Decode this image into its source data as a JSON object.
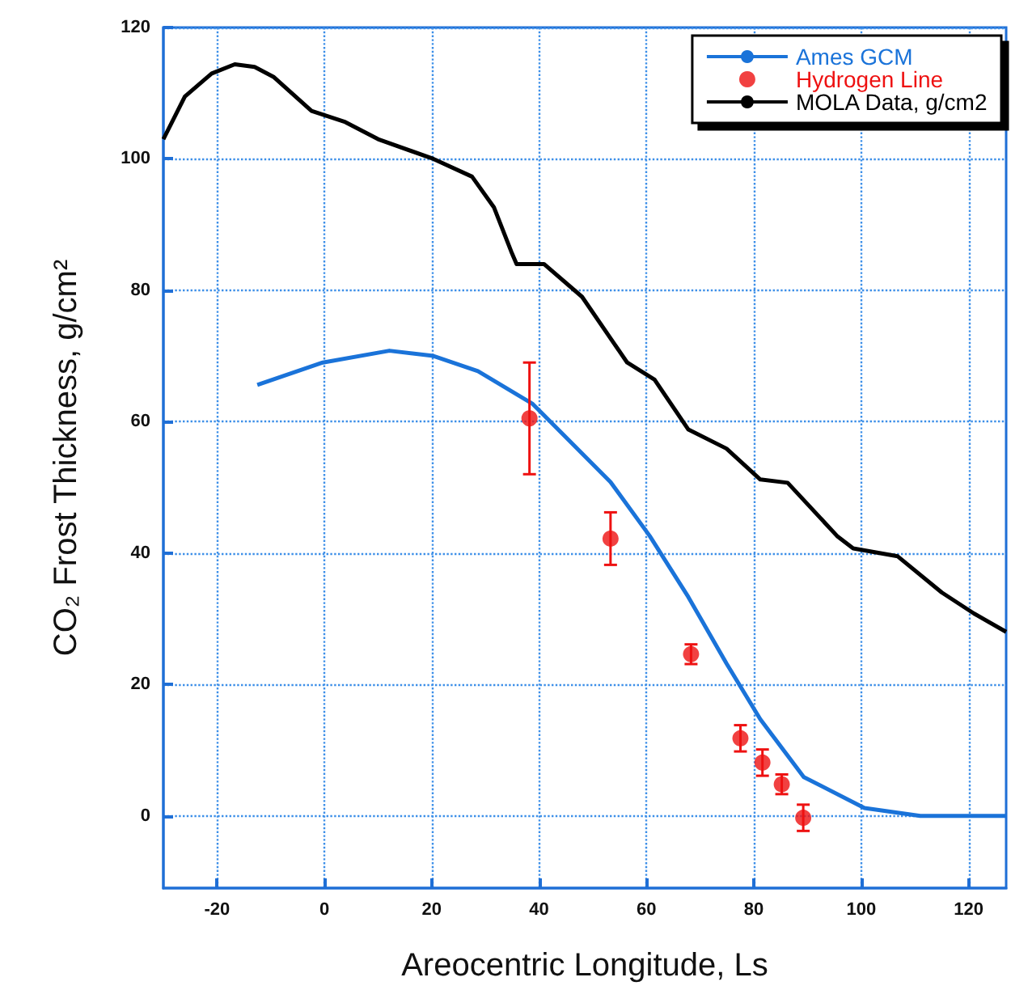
{
  "chart_data": {
    "type": "line",
    "xlabel": "Areocentric Longitude, Ls",
    "ylabel": "CO₂ Frost Thickness, g/cm²",
    "xlim": [
      -30,
      127
    ],
    "xticks": [
      -20,
      0,
      20,
      40,
      60,
      80,
      100,
      120
    ],
    "ylim": [
      -11,
      120
    ],
    "yticks": [
      0,
      20,
      40,
      60,
      80,
      100,
      120
    ],
    "grid": true,
    "legend": "top right",
    "series": [
      {
        "name": "Ames GCM",
        "color": "#1a73d9",
        "x": [
          -12.5,
          -0.3,
          12.1,
          20.3,
          28.6,
          38.8,
          53.3,
          60.6,
          67.8,
          74.9,
          81.2,
          89.3,
          100.6,
          111,
          127
        ],
        "values": [
          65.6,
          69,
          70.8,
          70,
          67.7,
          62.7,
          50.8,
          42.6,
          33.3,
          23.2,
          14.7,
          5.9,
          1.2,
          0,
          0
        ]
      },
      {
        "name": "Hydrogen Line",
        "type": "scatter",
        "marker": "circle",
        "color": "#ee1111",
        "x": [
          38.2,
          53.3,
          68.3,
          77.5,
          81.6,
          85.2,
          89.2
        ],
        "values": [
          60.5,
          42.2,
          24.6,
          11.8,
          8.1,
          4.8,
          -0.3
        ],
        "errors": [
          8.5,
          4,
          1.5,
          2,
          2,
          1.5,
          2
        ]
      },
      {
        "name": "MOLA Data, g/cm2",
        "color": "#000000",
        "x": [
          -30,
          -26,
          -21,
          -16.7,
          -13,
          -9.5,
          -2.4,
          3.9,
          10,
          20.3,
          27.5,
          31.6,
          34.8,
          35.8,
          40.9,
          48,
          56.4,
          61.5,
          67.8,
          74.9,
          81.2,
          86.3,
          95.5,
          98.5,
          106.8,
          115,
          121,
          127
        ],
        "values": [
          103,
          109.5,
          113,
          114.4,
          114,
          112.5,
          107.3,
          105.6,
          103,
          100,
          97.3,
          92.6,
          85.9,
          84,
          84,
          79,
          69,
          66.4,
          58.8,
          55.9,
          51.2,
          50.7,
          42.6,
          40.7,
          39.5,
          34,
          30.8,
          28
        ]
      }
    ]
  }
}
